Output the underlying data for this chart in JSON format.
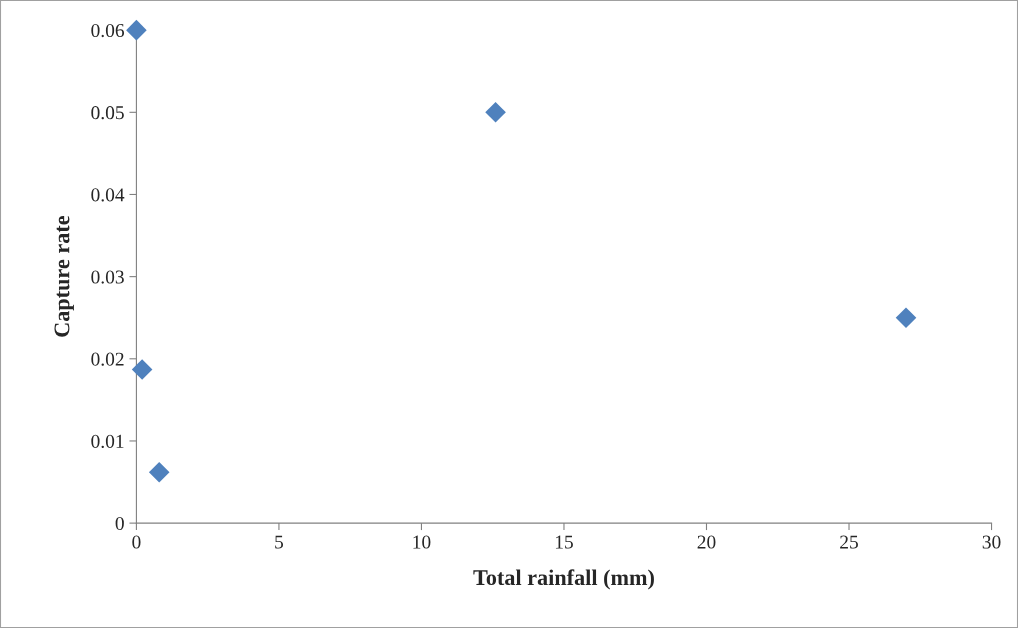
{
  "chart_data": {
    "type": "scatter",
    "xlabel": "Total rainfall (mm)",
    "ylabel": "Capture rate",
    "x": [
      0,
      12.6,
      27,
      0.2,
      0.8
    ],
    "values": [
      0.06,
      0.05,
      0.025,
      0.0187,
      0.0062
    ],
    "color": "#4f81bd",
    "marker": "diamond",
    "xlim": [
      0,
      30
    ],
    "xticks": [
      0,
      5,
      10,
      15,
      20,
      25,
      30
    ],
    "ylim": [
      0,
      0.06
    ],
    "yticks": [
      0,
      0.01,
      0.02,
      0.03,
      0.04,
      0.05,
      0.06
    ],
    "grid": false,
    "legend": false
  }
}
